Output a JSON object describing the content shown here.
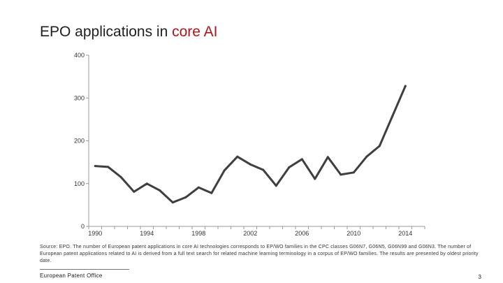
{
  "slide": {
    "title_main": "EPO applications in ",
    "title_accent": "core AI",
    "source_note": "Source: EPO. The number of European patent applications in core AI technologies corresponds to EP/WO families in the CPC classes G06N7, G06N5, G06N99 and G06N3. The number of European patent applications related to AI is derived from a full text search for related machine learning terminology in a corpus of EP/WO families. The results are presented by oldest priority date.",
    "footer": "European Patent Office",
    "page_number": "3",
    "accent_color": "#b5121b"
  },
  "chart_data": {
    "type": "line",
    "title": "",
    "xlabel": "",
    "ylabel": "",
    "x": [
      1990,
      1991,
      1992,
      1993,
      1994,
      1995,
      1996,
      1997,
      1998,
      1999,
      2000,
      2001,
      2002,
      2003,
      2004,
      2005,
      2006,
      2007,
      2008,
      2009,
      2010,
      2011,
      2012,
      2013,
      2014,
      2015
    ],
    "series": [
      {
        "values": [
          141,
          139,
          115,
          81,
          100,
          84,
          56,
          68,
          91,
          78,
          131,
          163,
          145,
          132,
          95,
          138,
          157,
          111,
          162,
          121,
          126,
          163,
          188,
          258,
          328,
          null
        ]
      }
    ],
    "ylim": [
      0,
      400
    ],
    "yticks": [
      0,
      100,
      200,
      300,
      400
    ],
    "xlim": [
      1989.5,
      2015.5
    ],
    "xtick_labels": [
      1990,
      1994,
      1998,
      2002,
      2006,
      2010,
      2014
    ],
    "xtick_marks": [
      1989.5,
      1990.5,
      1991.5,
      1992.5,
      1993.5,
      1994.5,
      1995.5,
      1996.5,
      1997.5,
      1998.5,
      1999.5,
      2000.5,
      2001.5,
      2002.5,
      2003.5,
      2004.5,
      2005.5,
      2006.5,
      2007.5,
      2008.5,
      2009.5,
      2010.5,
      2011.5,
      2012.5,
      2013.5,
      2014.5,
      2015.5
    ],
    "line_color": "#3f3f3f",
    "grid": false,
    "legend": "none"
  }
}
